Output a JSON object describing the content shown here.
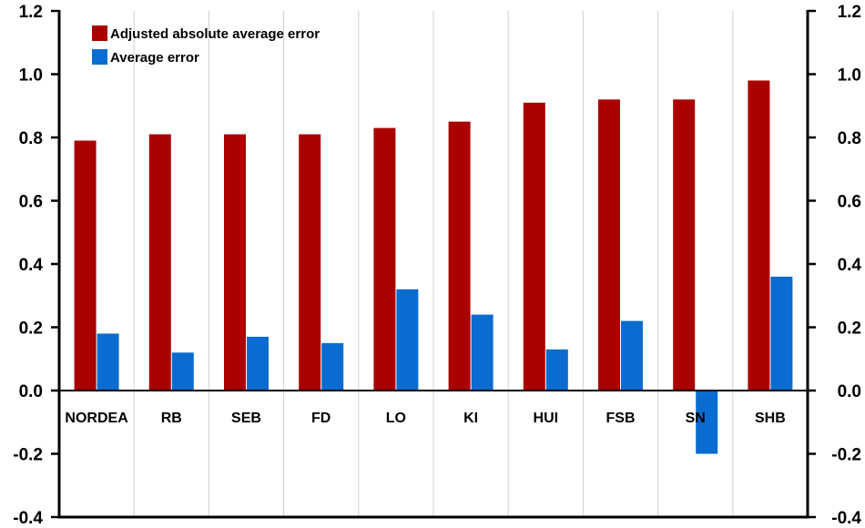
{
  "chart_data": {
    "type": "bar",
    "categories": [
      "NORDEA",
      "RB",
      "SEB",
      "FD",
      "LO",
      "KI",
      "HUI",
      "FSB",
      "SN",
      "SHB"
    ],
    "series": [
      {
        "name": "Adjusted absolute average error",
        "color": "#AA0000",
        "values": [
          0.79,
          0.81,
          0.81,
          0.81,
          0.83,
          0.85,
          0.91,
          0.92,
          0.92,
          0.98
        ]
      },
      {
        "name": "Average error",
        "color": "#0A6CD0",
        "values": [
          0.18,
          0.12,
          0.17,
          0.15,
          0.32,
          0.24,
          0.13,
          0.22,
          -0.2,
          0.36
        ]
      }
    ],
    "ylim": [
      -0.4,
      1.2
    ],
    "yticks": [
      "-0.4",
      "-0.2",
      "0.0",
      "0.2",
      "0.4",
      "0.6",
      "0.8",
      "1.0",
      "1.2"
    ],
    "grid": "vertical",
    "legend_position": "top-left",
    "axes": "left-and-right"
  }
}
